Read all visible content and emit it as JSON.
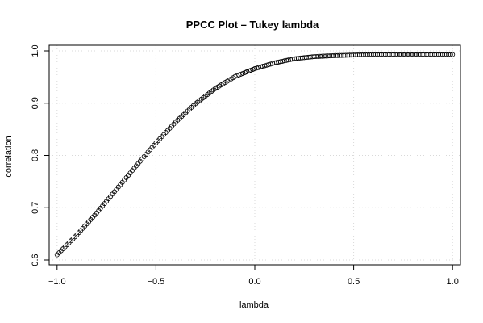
{
  "chart_data": {
    "type": "scatter",
    "title": "PPCC Plot – Tukey lambda",
    "xlabel": "lambda",
    "ylabel": "correlation",
    "xlim": [
      -1.04,
      1.04
    ],
    "ylim": [
      0.6,
      1.0
    ],
    "xticks": [
      -1.0,
      -0.5,
      0.0,
      0.5,
      1.0
    ],
    "xtick_labels": [
      "−1.0",
      "−0.5",
      "0.0",
      "0.5",
      "1.0"
    ],
    "yticks": [
      0.6,
      0.7,
      0.8,
      0.9,
      1.0
    ],
    "ytick_labels": [
      "0.6",
      "0.7",
      "0.8",
      "0.9",
      "1.0"
    ],
    "grid": true,
    "marker": "open-circle",
    "series": [
      {
        "x": [
          -1.0,
          -0.9,
          -0.8,
          -0.7,
          -0.6,
          -0.5,
          -0.4,
          -0.3,
          -0.2,
          -0.1,
          0.0,
          0.1,
          0.2,
          0.3,
          0.4,
          0.5,
          0.6,
          0.7,
          0.8,
          0.9,
          1.0
        ],
        "values": [
          0.61,
          0.648,
          0.69,
          0.735,
          0.78,
          0.824,
          0.864,
          0.899,
          0.928,
          0.951,
          0.966,
          0.977,
          0.985,
          0.989,
          0.991,
          0.992,
          0.993,
          0.993,
          0.993,
          0.993,
          0.993
        ]
      }
    ]
  }
}
